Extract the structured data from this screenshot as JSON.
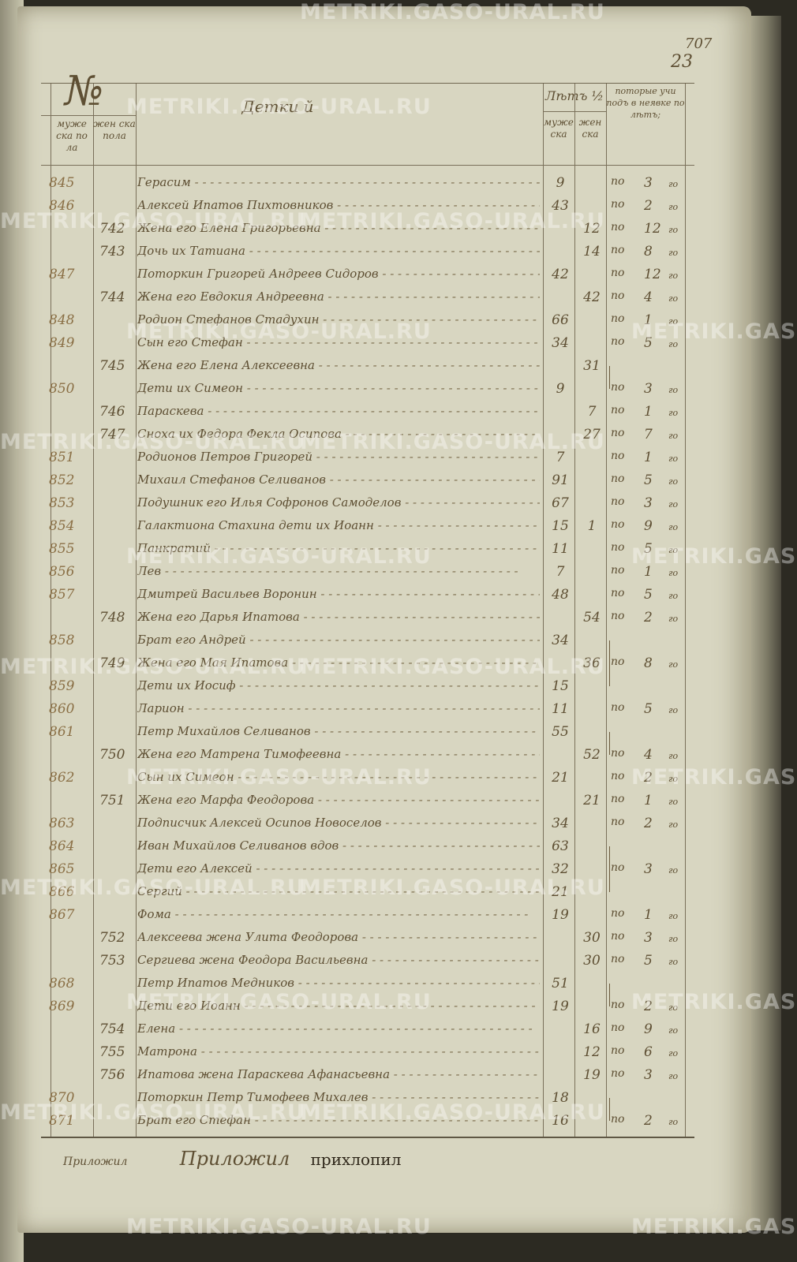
{
  "page_numbers": {
    "top": "707",
    "sheet": "23"
  },
  "header": {
    "num_label": "№",
    "male_no": "муже ска по ла",
    "female_no": "жен ска пола",
    "names": "Детки й",
    "years": "Лѣтъ ½",
    "male_age": "муже ска",
    "female_age": "жен ска",
    "prior": "поторые учи подъ в неявке по лѣтъ;"
  },
  "po_label": "по",
  "god_label": "го",
  "rows": [
    {
      "m": "845",
      "f": "",
      "name": "Герасим",
      "ma": "9",
      "fa": "",
      "c": "3"
    },
    {
      "m": "846",
      "f": "",
      "name": "Алексей Ипатов Пихтовников",
      "ma": "43",
      "fa": "",
      "c": "2"
    },
    {
      "m": "",
      "f": "742",
      "name": "Жена его Елена Григорьевна",
      "ma": "",
      "fa": "12",
      "c": "12"
    },
    {
      "m": "",
      "f": "743",
      "name": "Дочь их Татиана",
      "ma": "",
      "fa": "14",
      "c": "8"
    },
    {
      "m": "847",
      "f": "",
      "name": "Поторкин Григорей Андреев Сидоров",
      "ma": "42",
      "fa": "",
      "c": "12"
    },
    {
      "m": "",
      "f": "744",
      "name": "Жена его Евдокия Андреевна",
      "ma": "",
      "fa": "42",
      "c": "4"
    },
    {
      "m": "848",
      "f": "",
      "name": "Родион Стефанов Стадухин",
      "ma": "66",
      "fa": "",
      "c": "1"
    },
    {
      "m": "849",
      "f": "",
      "name": "Сын его Стефан",
      "ma": "34",
      "fa": "",
      "c": "5"
    },
    {
      "m": "",
      "f": "745",
      "name": "Жена его Елена Алексеевна",
      "ma": "",
      "fa": "31",
      "c": "",
      "g": "start"
    },
    {
      "m": "850",
      "f": "",
      "name": "Дети их Симеон",
      "ma": "9",
      "fa": "",
      "c": "3",
      "g": "end"
    },
    {
      "m": "",
      "f": "746",
      "name": "Параскева",
      "ma": "",
      "fa": "7",
      "c": "1"
    },
    {
      "m": "",
      "f": "747",
      "name": "Сноха их Федора Фекла Осипова",
      "ma": "",
      "fa": "27",
      "c": "7"
    },
    {
      "m": "851",
      "f": "",
      "name": "Родионов Петров Григорей",
      "ma": "7",
      "fa": "",
      "c": "1"
    },
    {
      "m": "852",
      "f": "",
      "name": "Михаил Стефанов Селиванов",
      "ma": "91",
      "fa": "",
      "c": "5"
    },
    {
      "m": "853",
      "f": "",
      "name": "Подушник его Илья Софронов Самоделов",
      "ma": "67",
      "fa": "",
      "c": "3"
    },
    {
      "m": "854",
      "f": "",
      "name": "Галактиона Стахина дети их Иоанн",
      "ma": "15",
      "fa": "1",
      "c": "9"
    },
    {
      "m": "855",
      "f": "",
      "name": "Панкратий",
      "ma": "11",
      "fa": "",
      "c": "5"
    },
    {
      "m": "856",
      "f": "",
      "name": "Лев",
      "ma": "7",
      "fa": "",
      "c": "1"
    },
    {
      "m": "857",
      "f": "",
      "name": "Дмитрей Васильев Воронин",
      "ma": "48",
      "fa": "",
      "c": "5"
    },
    {
      "m": "",
      "f": "748",
      "name": "Жена его Дарья Ипатова",
      "ma": "",
      "fa": "54",
      "c": "2"
    },
    {
      "m": "858",
      "f": "",
      "name": "Брат его Андрей",
      "ma": "34",
      "fa": "",
      "c": "",
      "g": "start"
    },
    {
      "m": "",
      "f": "749",
      "name": "Жена его Мая Ипатова",
      "ma": "",
      "fa": "36",
      "c": "8",
      "g": "mid"
    },
    {
      "m": "859",
      "f": "",
      "name": "Дети их Иосиф",
      "ma": "15",
      "fa": "",
      "c": "",
      "g": "end"
    },
    {
      "m": "860",
      "f": "",
      "name": "Ларион",
      "ma": "11",
      "fa": "",
      "c": "5"
    },
    {
      "m": "861",
      "f": "",
      "name": "Петр Михайлов Селиванов",
      "ma": "55",
      "fa": "",
      "c": "",
      "g": "start"
    },
    {
      "m": "",
      "f": "750",
      "name": "Жена его Матрена Тимофеевна",
      "ma": "",
      "fa": "52",
      "c": "4",
      "g": "end"
    },
    {
      "m": "862",
      "f": "",
      "name": "Сын их Симеон",
      "ma": "21",
      "fa": "",
      "c": "2"
    },
    {
      "m": "",
      "f": "751",
      "name": "Жена его Марфа Феодорова",
      "ma": "",
      "fa": "21",
      "c": "1"
    },
    {
      "m": "863",
      "f": "",
      "name": "Подписчик Алексей Осипов Новоселов",
      "ma": "34",
      "fa": "",
      "c": "2"
    },
    {
      "m": "864",
      "f": "",
      "name": "Иван Михайлов Селиванов вдов",
      "ma": "63",
      "fa": "",
      "c": "",
      "g": "start"
    },
    {
      "m": "865",
      "f": "",
      "name": "Дети его Алексей",
      "ma": "32",
      "fa": "",
      "c": "3",
      "g": "mid"
    },
    {
      "m": "866",
      "f": "",
      "name": "Сергий",
      "ma": "21",
      "fa": "",
      "c": "",
      "g": "end"
    },
    {
      "m": "867",
      "f": "",
      "name": "Фома",
      "ma": "19",
      "fa": "",
      "c": "1"
    },
    {
      "m": "",
      "f": "752",
      "name": "Алексеева жена Улита Феодорова",
      "ma": "",
      "fa": "30",
      "c": "3"
    },
    {
      "m": "",
      "f": "753",
      "name": "Сергиева жена Феодора Васильевна",
      "ma": "",
      "fa": "30",
      "c": "5"
    },
    {
      "m": "868",
      "f": "",
      "name": "Петр Ипатов Медников",
      "ma": "51",
      "fa": "",
      "c": "",
      "g": "start"
    },
    {
      "m": "869",
      "f": "",
      "name": "Дети его Иоанн",
      "ma": "19",
      "fa": "",
      "c": "2",
      "g": "end"
    },
    {
      "m": "",
      "f": "754",
      "name": "Елена",
      "ma": "",
      "fa": "16",
      "c": "9"
    },
    {
      "m": "",
      "f": "755",
      "name": "Матрона",
      "ma": "",
      "fa": "12",
      "c": "6"
    },
    {
      "m": "",
      "f": "756",
      "name": "Ипатова жена Параскева Афанасьевна",
      "ma": "",
      "fa": "19",
      "c": "3"
    },
    {
      "m": "870",
      "f": "",
      "name": "Поторкин Петр Тимофеев Михалев",
      "ma": "18",
      "fa": "",
      "c": "",
      "g": "start"
    },
    {
      "m": "871",
      "f": "",
      "name": "Брат его Стефан",
      "ma": "16",
      "fa": "",
      "c": "2",
      "g": "end"
    }
  ],
  "footer": {
    "a": "Приложил",
    "b": "Приложил",
    "c": "прихлопил"
  },
  "watermark": "METRIKI.GASO-URAL.RU"
}
